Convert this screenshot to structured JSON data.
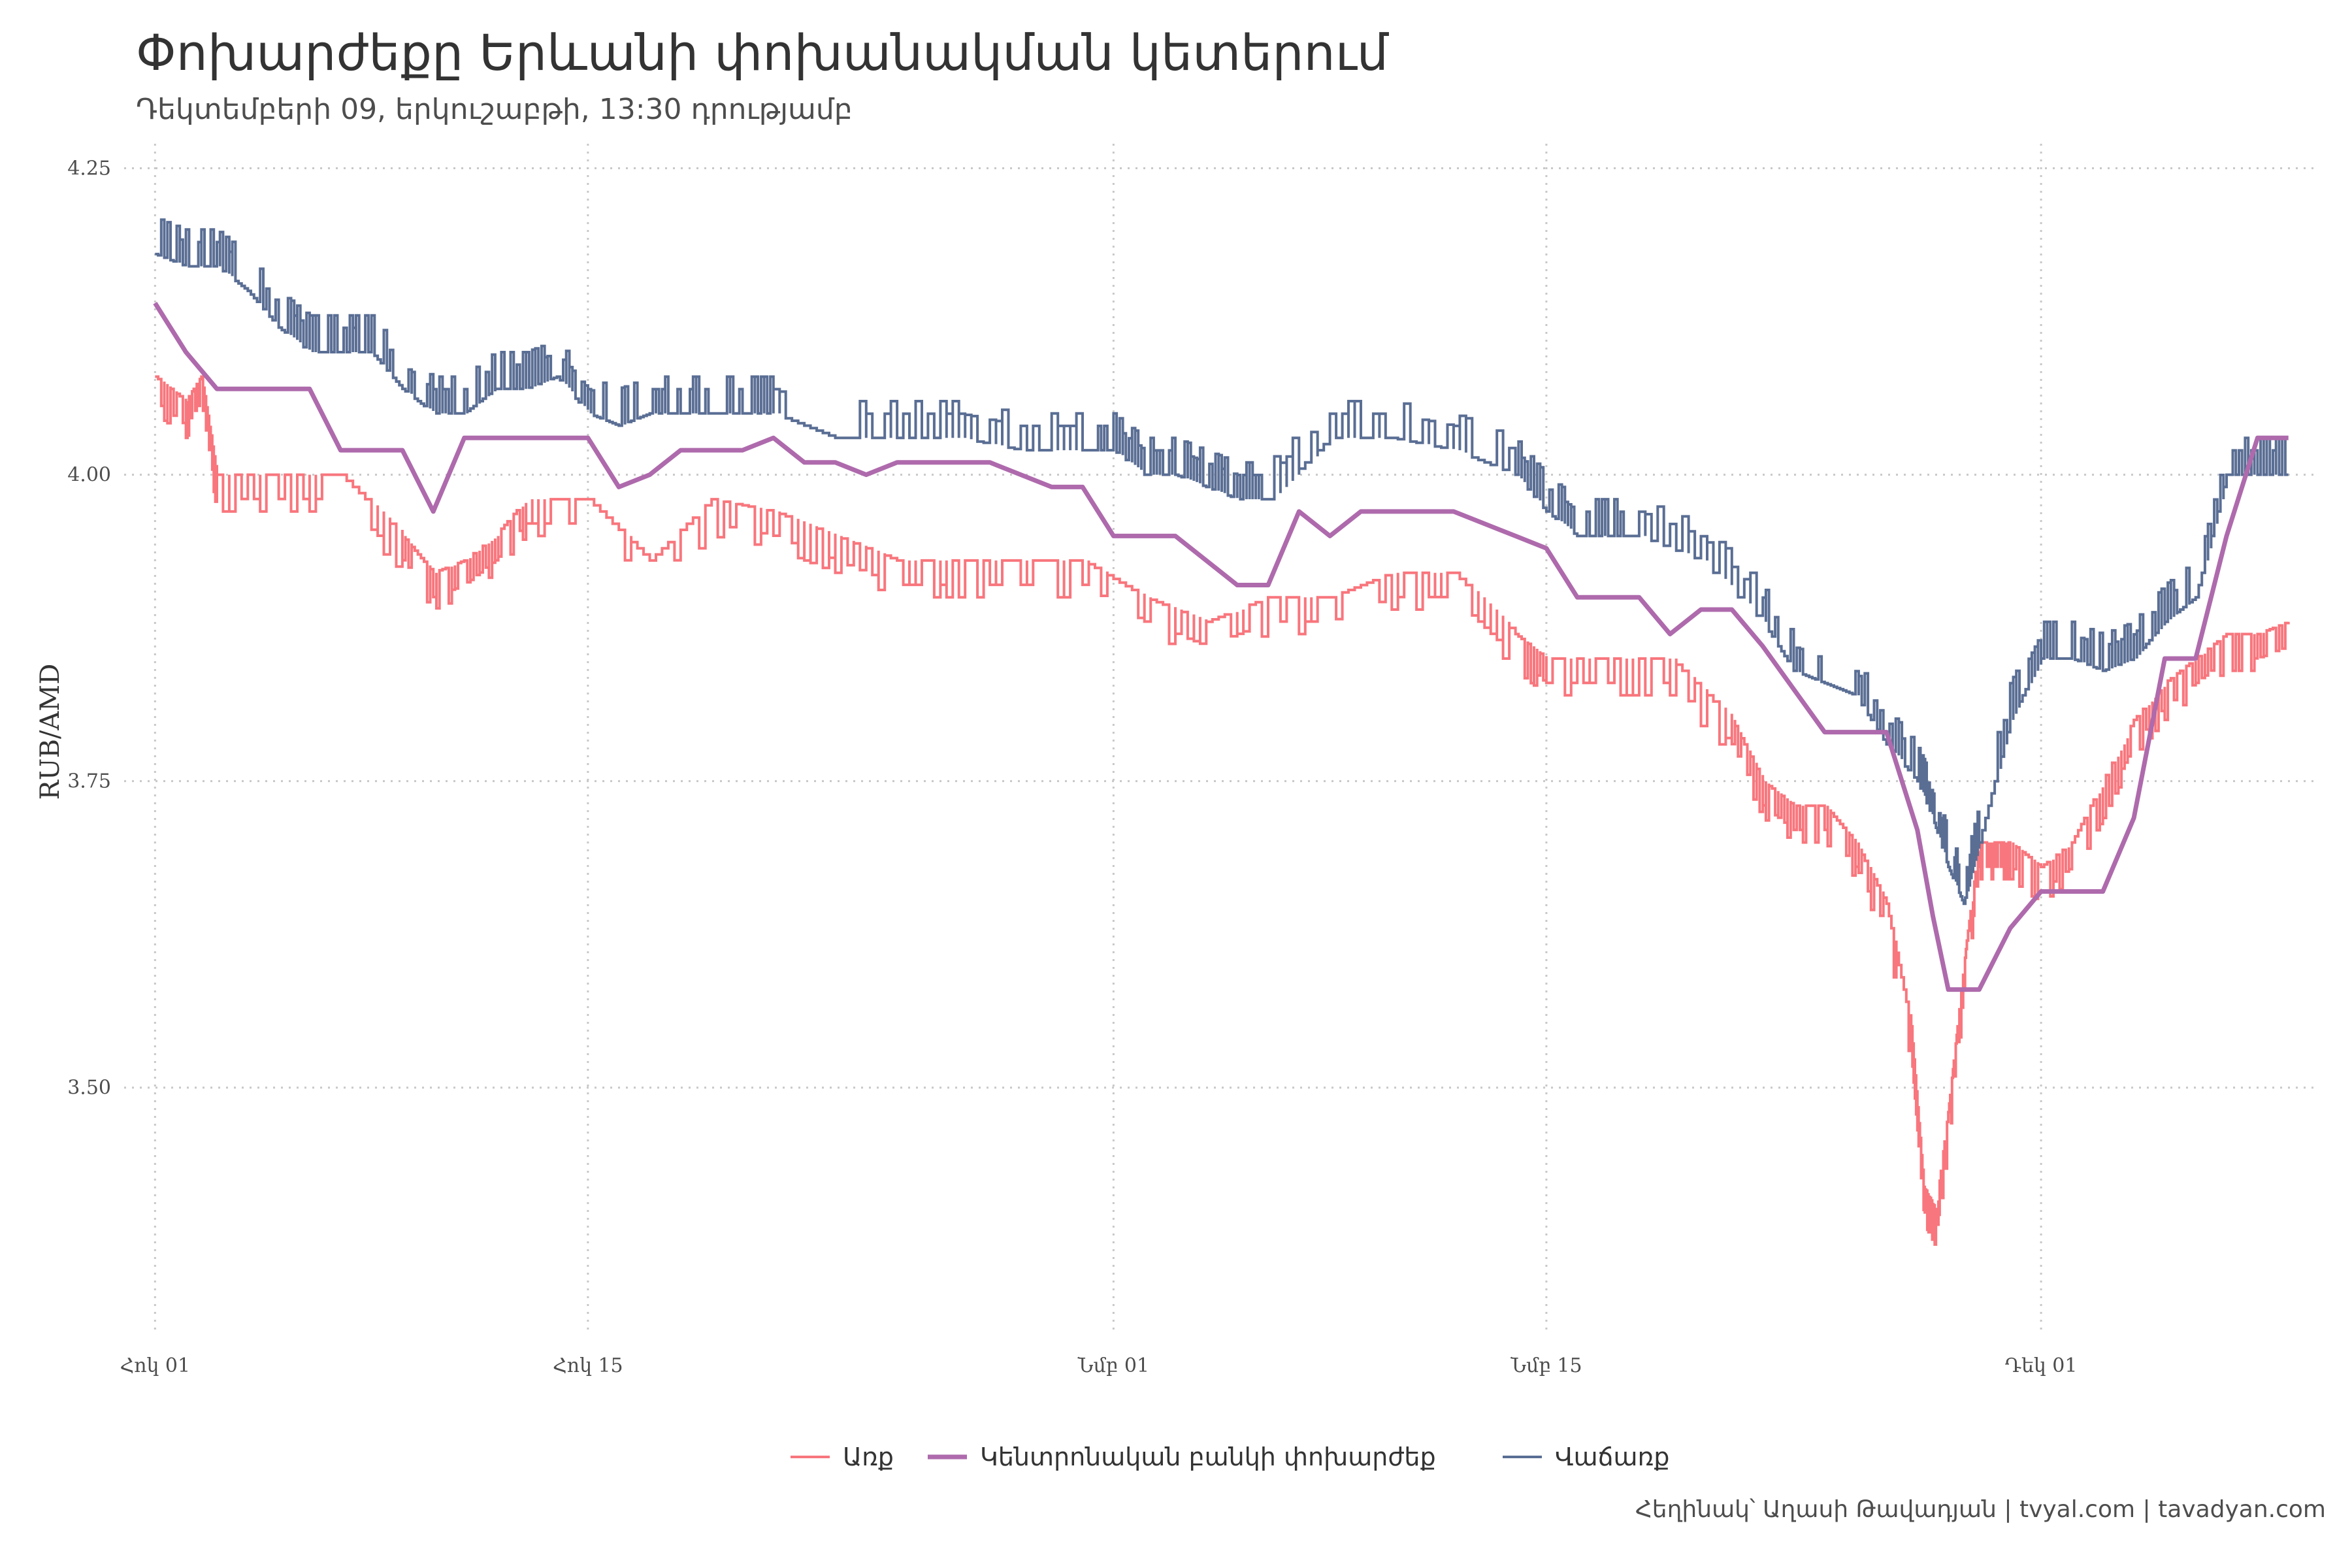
{
  "title": "Փոխարժեքը Երևանի փոխանակման կետերում",
  "subtitle": "Դեկտեմբերի 09, երկուշաբթի, 13:30 դրությամբ",
  "caption": "Հեղինակ՝ Աղասի Թավադյան   |   tvyal.com   |   tavadyan.com",
  "chart_data": {
    "type": "line",
    "ylabel": "RUB/AMD",
    "xlabel": "",
    "ylim": [
      3.3,
      4.27
    ],
    "xlim": [
      -1,
      70
    ],
    "yticks": [
      3.5,
      3.75,
      4.0,
      4.25
    ],
    "ytick_labels": [
      "3.50",
      "3.75",
      "4.00",
      "4.25"
    ],
    "xticks": [
      0,
      14,
      31,
      45,
      61
    ],
    "xtick_labels": [
      "Հոկ 01",
      "Հոկ 15",
      "Նմբ 01",
      "Նմբ 15",
      "Դեկ 01"
    ],
    "x_unit": "day index starting Oct 01",
    "grid": true,
    "legend_position": "bottom",
    "series": [
      {
        "name": "Առք",
        "color": "#F8767D",
        "style": "step-noisy",
        "x": [
          0,
          1,
          1.5,
          2,
          4,
          6,
          8,
          9,
          10,
          11,
          12,
          14,
          16,
          18,
          20,
          22,
          24,
          26,
          28,
          30,
          32,
          34,
          36,
          38,
          40,
          42,
          44,
          45,
          47,
          49,
          51,
          52,
          53,
          54,
          55,
          56,
          56.8,
          57.2,
          57.6,
          58,
          58.3,
          58.6,
          59,
          59.5,
          60,
          61,
          62,
          63,
          64,
          65,
          66,
          67,
          68,
          69
        ],
        "y": [
          4.08,
          4.06,
          4.08,
          4.0,
          4.0,
          4.0,
          3.95,
          3.92,
          3.93,
          3.95,
          3.98,
          3.98,
          3.93,
          3.98,
          3.97,
          3.95,
          3.93,
          3.93,
          3.93,
          3.93,
          3.9,
          3.88,
          3.9,
          3.9,
          3.92,
          3.92,
          3.87,
          3.85,
          3.85,
          3.85,
          3.8,
          3.75,
          3.73,
          3.73,
          3.7,
          3.65,
          3.55,
          3.42,
          3.4,
          3.48,
          3.55,
          3.62,
          3.7,
          3.7,
          3.7,
          3.68,
          3.7,
          3.75,
          3.8,
          3.83,
          3.85,
          3.87,
          3.87,
          3.88
        ]
      },
      {
        "name": "Կենտրոնական բանկի փոխարժեք",
        "color": "#AE6AAC",
        "style": "line",
        "x": [
          0,
          1,
          2,
          3,
          5,
          6,
          8,
          9,
          10,
          11,
          12,
          14,
          15,
          16,
          17,
          18,
          19,
          20,
          21,
          22,
          23,
          24,
          25,
          27,
          29,
          30,
          31,
          32,
          33,
          35,
          36,
          37,
          38,
          39,
          40,
          42,
          44,
          45,
          46,
          48,
          49,
          50,
          51,
          52,
          54,
          56,
          57,
          57.5,
          58,
          58.5,
          59,
          60,
          61,
          62,
          63,
          64,
          65,
          66,
          67,
          68,
          69
        ],
        "y": [
          4.14,
          4.1,
          4.07,
          4.07,
          4.07,
          4.02,
          4.02,
          3.97,
          4.03,
          4.03,
          4.03,
          4.03,
          3.99,
          4.0,
          4.02,
          4.02,
          4.02,
          4.03,
          4.01,
          4.01,
          4.0,
          4.01,
          4.01,
          4.01,
          3.99,
          3.99,
          3.95,
          3.95,
          3.95,
          3.91,
          3.91,
          3.97,
          3.95,
          3.97,
          3.97,
          3.97,
          3.95,
          3.94,
          3.9,
          3.9,
          3.87,
          3.89,
          3.89,
          3.86,
          3.79,
          3.79,
          3.71,
          3.64,
          3.58,
          3.58,
          3.58,
          3.63,
          3.66,
          3.66,
          3.66,
          3.72,
          3.85,
          3.85,
          3.95,
          4.03,
          4.03
        ]
      },
      {
        "name": "Վաճառք",
        "color": "#5A6E94",
        "style": "step-noisy",
        "x": [
          0,
          1,
          2,
          3,
          4,
          5,
          6,
          7,
          8,
          9,
          10,
          11,
          12,
          13,
          14,
          15,
          16,
          17,
          18,
          19,
          20,
          22,
          24,
          26,
          28,
          30,
          31,
          32,
          33,
          34,
          35,
          36,
          38,
          40,
          42,
          44,
          45,
          46,
          47,
          48,
          50,
          52,
          53,
          54,
          55,
          56,
          57,
          57.5,
          58,
          58.5,
          59,
          60,
          61,
          62,
          63,
          64,
          65,
          66,
          67,
          68,
          69
        ],
        "y": [
          4.18,
          4.17,
          4.17,
          4.15,
          4.12,
          4.1,
          4.1,
          4.1,
          4.07,
          4.05,
          4.05,
          4.07,
          4.07,
          4.08,
          4.05,
          4.04,
          4.05,
          4.05,
          4.05,
          4.05,
          4.05,
          4.03,
          4.03,
          4.03,
          4.02,
          4.02,
          4.02,
          4.0,
          4.0,
          3.99,
          3.98,
          3.98,
          4.03,
          4.03,
          4.02,
          4.0,
          3.97,
          3.95,
          3.95,
          3.95,
          3.93,
          3.88,
          3.84,
          3.83,
          3.82,
          3.78,
          3.75,
          3.72,
          3.68,
          3.65,
          3.7,
          3.8,
          3.85,
          3.85,
          3.84,
          3.85,
          3.88,
          3.9,
          4.0,
          4.0,
          4.0
        ]
      }
    ]
  }
}
